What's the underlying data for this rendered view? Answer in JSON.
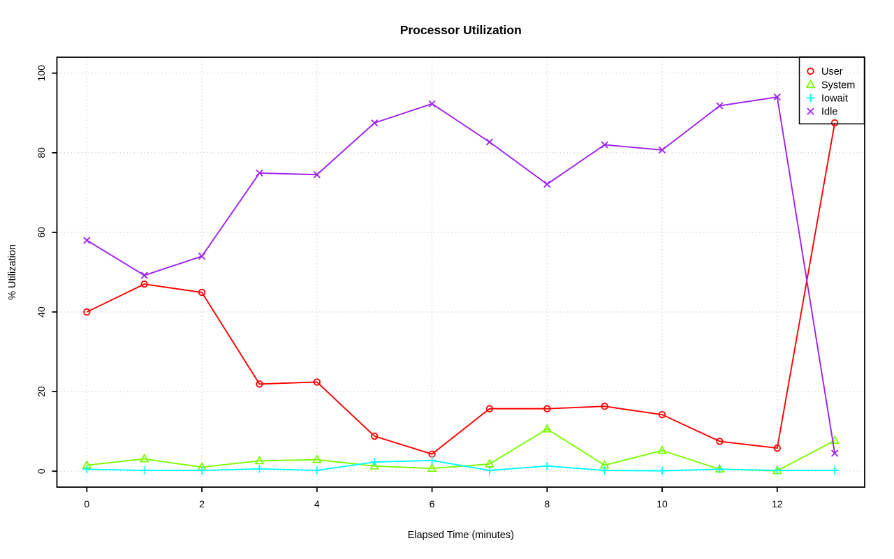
{
  "title": "Processor Utilization",
  "chart_data": {
    "type": "line",
    "title": "Processor Utilization",
    "xlabel": "Elapsed Time (minutes)",
    "ylabel": "% Utilization",
    "x": [
      0,
      1,
      2,
      3,
      4,
      5,
      6,
      7,
      8,
      9,
      10,
      11,
      12,
      13
    ],
    "series": [
      {
        "name": "User",
        "color": "#FF0000",
        "marker": "circle",
        "values": [
          40,
          47,
          44.9,
          21.9,
          22.4,
          8.8,
          4.3,
          15.7,
          15.7,
          16.3,
          14.2,
          7.5,
          5.8,
          87.5
        ]
      },
      {
        "name": "System",
        "color": "#7CFC00",
        "marker": "triangle",
        "values": [
          1.5,
          3.1,
          1.0,
          2.6,
          2.9,
          1.3,
          0.7,
          1.8,
          10.6,
          1.5,
          5.2,
          0.5,
          0.1,
          7.7
        ]
      },
      {
        "name": "Iowait",
        "color": "#00FFFF",
        "marker": "plus",
        "values": [
          0.5,
          0.2,
          0.2,
          0.6,
          0.2,
          2.3,
          2.7,
          0.2,
          1.3,
          0.2,
          0.1,
          0.5,
          0.2,
          0.2
        ]
      },
      {
        "name": "Idle",
        "color": "#A020F0",
        "marker": "x",
        "values": [
          58,
          49.2,
          54,
          74.9,
          74.5,
          87.5,
          92.3,
          82.7,
          72.1,
          82,
          80.7,
          91.8,
          94,
          4.5
        ]
      }
    ],
    "xlim": [
      0,
      13
    ],
    "ylim": [
      0,
      100
    ],
    "xticks": [
      0,
      2,
      4,
      6,
      8,
      10,
      12
    ],
    "xtick_labels": [
      "0",
      "2",
      "4",
      "6",
      "8",
      "10",
      "12"
    ],
    "yticks": [
      0,
      20,
      40,
      60,
      80,
      100
    ],
    "ytick_labels": [
      "0",
      "20",
      "40",
      "60",
      "80",
      "100"
    ],
    "grid": true,
    "gridline_color": "#D3D3D3",
    "axis_color": "#000000",
    "legend_position": "topright",
    "legend_items": [
      "User",
      "System",
      "Iowait",
      "Idle"
    ]
  }
}
